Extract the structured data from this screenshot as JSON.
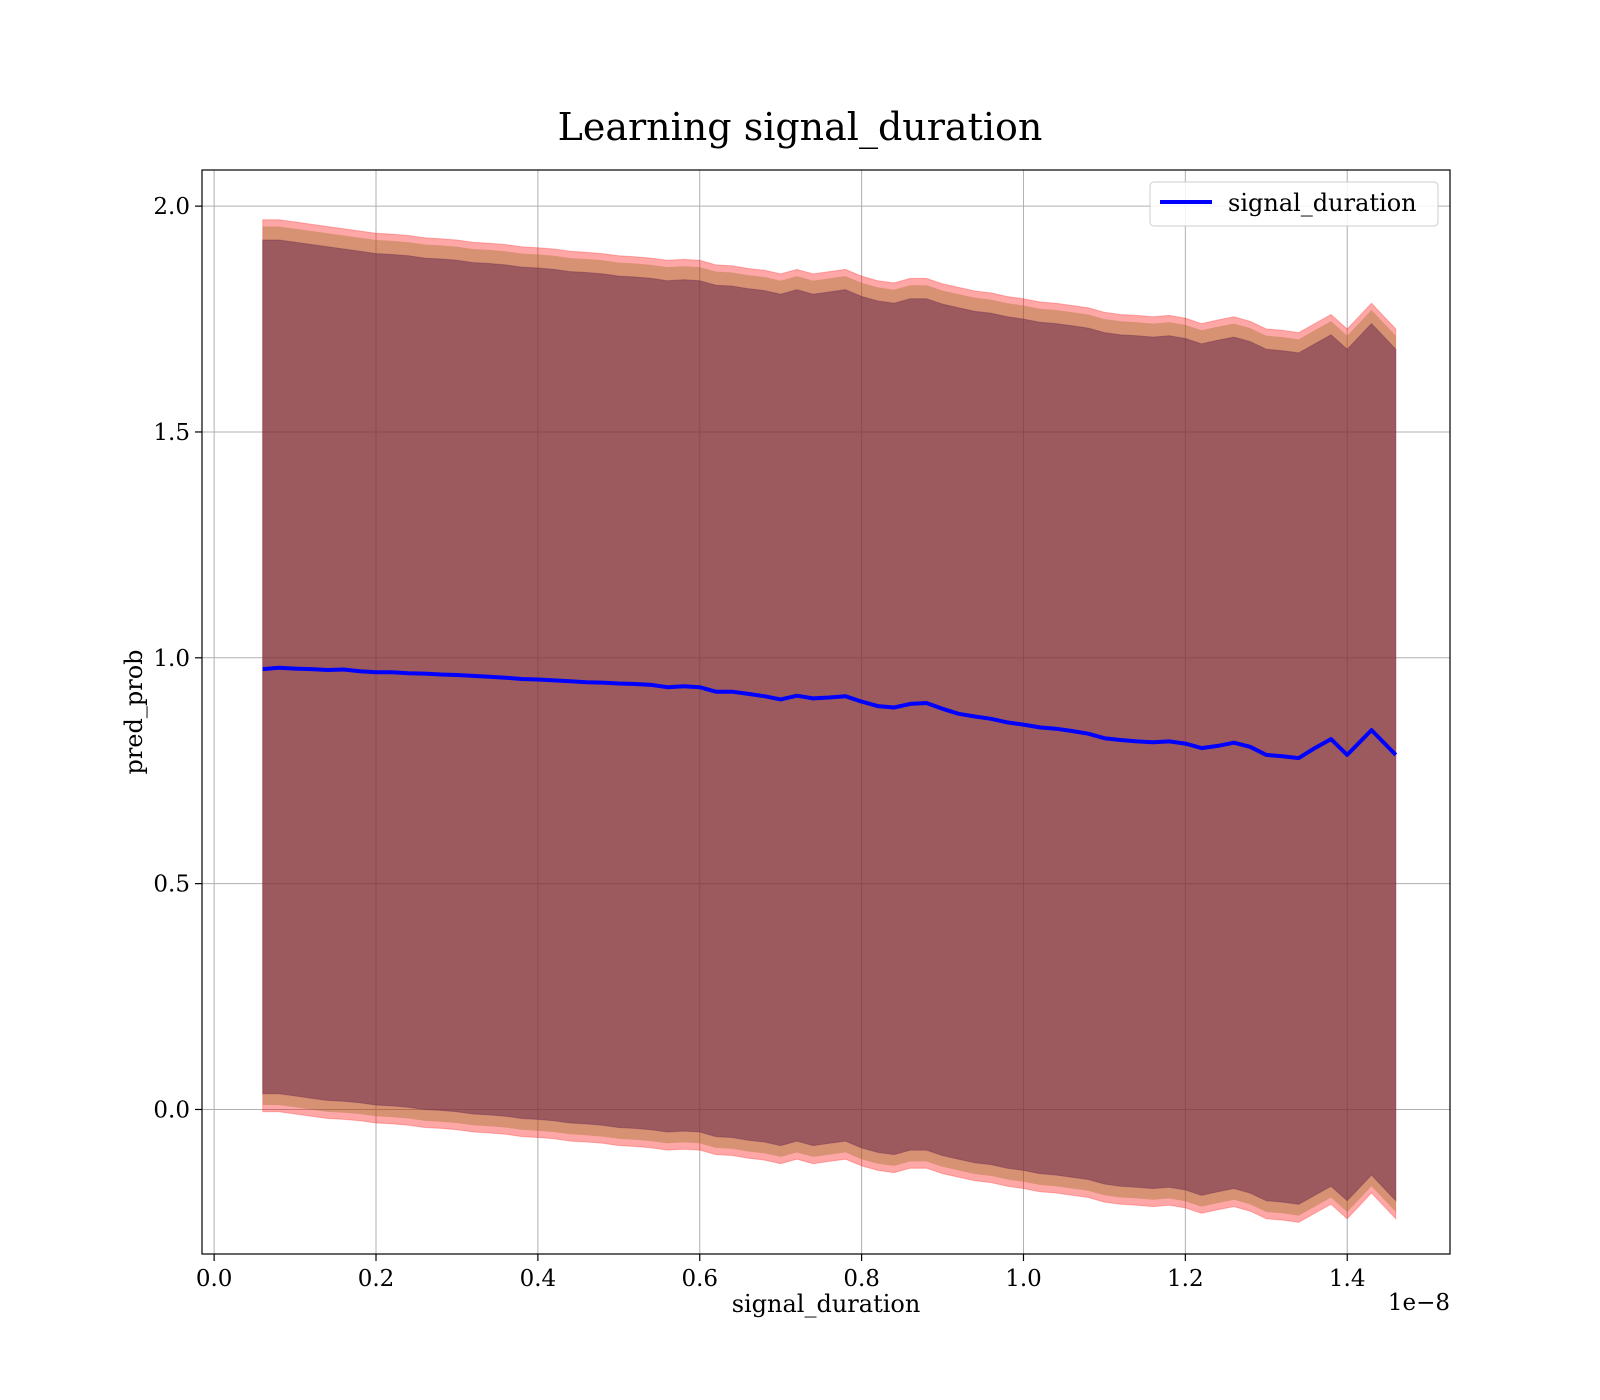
{
  "chart_data": {
    "type": "line",
    "title": "Learning signal_duration",
    "xlabel": "signal_duration",
    "ylabel": "pred_prob",
    "x_offset_label": "1e−8",
    "xlim": [
      -0.015,
      1.527
    ],
    "ylim": [
      -0.32,
      2.08
    ],
    "x_ticks": [
      0.0,
      0.2,
      0.4,
      0.6,
      0.8,
      1.0,
      1.2,
      1.4
    ],
    "x_tick_labels": [
      "0.0",
      "0.2",
      "0.4",
      "0.6",
      "0.8",
      "1.0",
      "1.2",
      "1.4"
    ],
    "y_ticks": [
      0.0,
      0.5,
      1.0,
      1.5,
      2.0
    ],
    "y_tick_labels": [
      "0.0",
      "0.5",
      "1.0",
      "1.5",
      "2.0"
    ],
    "grid": true,
    "legend_position": "top-right",
    "line_color": "#0000ff",
    "series": [
      {
        "name": "signal_duration",
        "x": [
          0.06,
          0.08,
          0.1,
          0.12,
          0.14,
          0.16,
          0.18,
          0.2,
          0.22,
          0.24,
          0.26,
          0.28,
          0.3,
          0.32,
          0.34,
          0.36,
          0.38,
          0.4,
          0.42,
          0.44,
          0.46,
          0.48,
          0.5,
          0.52,
          0.54,
          0.56,
          0.58,
          0.6,
          0.62,
          0.64,
          0.66,
          0.68,
          0.7,
          0.72,
          0.74,
          0.76,
          0.78,
          0.8,
          0.82,
          0.84,
          0.86,
          0.88,
          0.9,
          0.92,
          0.94,
          0.96,
          0.98,
          1.0,
          1.02,
          1.04,
          1.06,
          1.08,
          1.1,
          1.12,
          1.14,
          1.16,
          1.18,
          1.2,
          1.22,
          1.24,
          1.26,
          1.28,
          1.3,
          1.32,
          1.34,
          1.36,
          1.38,
          1.4,
          1.43,
          1.46
        ],
        "y": [
          0.975,
          0.978,
          0.976,
          0.975,
          0.973,
          0.974,
          0.97,
          0.968,
          0.968,
          0.966,
          0.965,
          0.963,
          0.962,
          0.96,
          0.958,
          0.956,
          0.953,
          0.952,
          0.95,
          0.948,
          0.946,
          0.945,
          0.943,
          0.942,
          0.94,
          0.935,
          0.937,
          0.935,
          0.925,
          0.925,
          0.92,
          0.915,
          0.908,
          0.916,
          0.91,
          0.912,
          0.915,
          0.903,
          0.893,
          0.89,
          0.898,
          0.9,
          0.887,
          0.876,
          0.87,
          0.865,
          0.857,
          0.852,
          0.846,
          0.843,
          0.838,
          0.832,
          0.822,
          0.818,
          0.815,
          0.813,
          0.815,
          0.81,
          0.8,
          0.805,
          0.812,
          0.803,
          0.785,
          0.782,
          0.778,
          0.8,
          0.82,
          0.785,
          0.84,
          0.785
        ],
        "upper_outer": [
          1.97,
          1.97,
          1.965,
          1.96,
          1.955,
          1.95,
          1.945,
          1.94,
          1.938,
          1.935,
          1.93,
          1.928,
          1.925,
          1.92,
          1.918,
          1.915,
          1.91,
          1.908,
          1.905,
          1.9,
          1.898,
          1.895,
          1.89,
          1.888,
          1.885,
          1.88,
          1.882,
          1.88,
          1.87,
          1.868,
          1.862,
          1.858,
          1.85,
          1.86,
          1.85,
          1.855,
          1.86,
          1.845,
          1.835,
          1.83,
          1.84,
          1.84,
          1.828,
          1.82,
          1.812,
          1.808,
          1.8,
          1.795,
          1.788,
          1.785,
          1.78,
          1.775,
          1.765,
          1.76,
          1.758,
          1.755,
          1.758,
          1.752,
          1.74,
          1.748,
          1.755,
          1.745,
          1.728,
          1.725,
          1.72,
          1.74,
          1.76,
          1.728,
          1.785,
          1.728
        ],
        "upper_inner": [
          1.925,
          1.925,
          1.92,
          1.915,
          1.91,
          1.905,
          1.9,
          1.895,
          1.893,
          1.89,
          1.885,
          1.883,
          1.88,
          1.875,
          1.873,
          1.87,
          1.865,
          1.863,
          1.86,
          1.855,
          1.853,
          1.85,
          1.845,
          1.843,
          1.84,
          1.835,
          1.837,
          1.835,
          1.825,
          1.823,
          1.817,
          1.813,
          1.805,
          1.815,
          1.805,
          1.81,
          1.815,
          1.8,
          1.79,
          1.785,
          1.795,
          1.795,
          1.783,
          1.775,
          1.767,
          1.763,
          1.755,
          1.75,
          1.743,
          1.74,
          1.735,
          1.73,
          1.72,
          1.715,
          1.713,
          1.71,
          1.713,
          1.707,
          1.695,
          1.703,
          1.71,
          1.7,
          1.683,
          1.68,
          1.675,
          1.695,
          1.715,
          1.683,
          1.74,
          1.683
        ],
        "lower_inner": [
          0.035,
          0.035,
          0.03,
          0.025,
          0.02,
          0.018,
          0.015,
          0.01,
          0.008,
          0.005,
          0.0,
          -0.002,
          -0.005,
          -0.01,
          -0.012,
          -0.015,
          -0.02,
          -0.022,
          -0.025,
          -0.03,
          -0.032,
          -0.035,
          -0.04,
          -0.042,
          -0.045,
          -0.05,
          -0.048,
          -0.05,
          -0.06,
          -0.062,
          -0.068,
          -0.072,
          -0.08,
          -0.07,
          -0.08,
          -0.075,
          -0.07,
          -0.085,
          -0.095,
          -0.1,
          -0.09,
          -0.09,
          -0.102,
          -0.11,
          -0.118,
          -0.122,
          -0.13,
          -0.135,
          -0.142,
          -0.145,
          -0.15,
          -0.155,
          -0.165,
          -0.17,
          -0.172,
          -0.175,
          -0.172,
          -0.178,
          -0.19,
          -0.182,
          -0.175,
          -0.185,
          -0.202,
          -0.205,
          -0.21,
          -0.19,
          -0.17,
          -0.202,
          -0.145,
          -0.202
        ],
        "lower_outer": [
          -0.005,
          -0.005,
          -0.01,
          -0.015,
          -0.02,
          -0.022,
          -0.025,
          -0.03,
          -0.032,
          -0.035,
          -0.04,
          -0.042,
          -0.045,
          -0.05,
          -0.052,
          -0.055,
          -0.06,
          -0.062,
          -0.065,
          -0.07,
          -0.072,
          -0.075,
          -0.08,
          -0.082,
          -0.085,
          -0.09,
          -0.088,
          -0.09,
          -0.1,
          -0.102,
          -0.108,
          -0.112,
          -0.12,
          -0.11,
          -0.12,
          -0.115,
          -0.11,
          -0.125,
          -0.135,
          -0.14,
          -0.13,
          -0.13,
          -0.142,
          -0.15,
          -0.158,
          -0.162,
          -0.17,
          -0.175,
          -0.182,
          -0.185,
          -0.19,
          -0.195,
          -0.205,
          -0.21,
          -0.212,
          -0.215,
          -0.212,
          -0.218,
          -0.23,
          -0.222,
          -0.215,
          -0.225,
          -0.242,
          -0.245,
          -0.25,
          -0.23,
          -0.21,
          -0.242,
          -0.185,
          -0.242
        ]
      }
    ]
  }
}
